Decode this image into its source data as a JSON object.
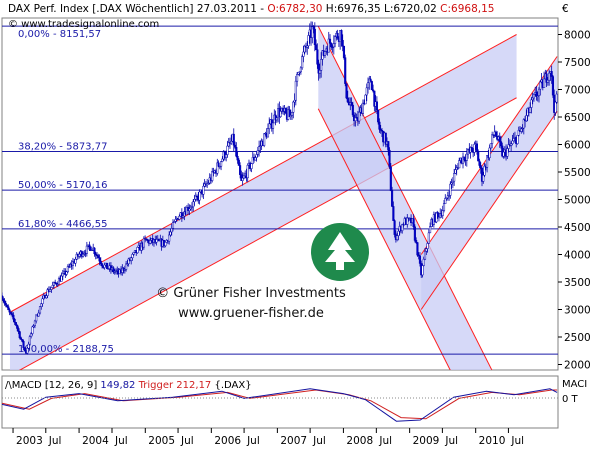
{
  "header": {
    "instrument": "DAX Perf. Index [.DAX Wöchentlich]",
    "date": "27.03.2011",
    "open": "O:6782,30",
    "high": "H:6976,35",
    "low": "L:6720,02",
    "close": "C:6968,15",
    "source": "© www.tradesignalonline.com",
    "currency": "€"
  },
  "watermark": {
    "line1": "© Grüner Fisher Investments",
    "line2": "www.gruener-fisher.de"
  },
  "colors": {
    "channel_fill": "#c8ccf5",
    "channel_line": "#ff2020",
    "fib_line": "#1a1aa8",
    "candle_up": "#ffffff",
    "candle_down": "#0000cc",
    "logo": "#1f8a4c",
    "macd": "#1414a0",
    "trigger": "#d02020"
  },
  "macd_panel": {
    "title": "/\\MACD [12, 26, 9]",
    "macd_value": "149,82",
    "trigger_label": "Trigger",
    "trigger_value": "212,17",
    "symbol": "{.DAX}",
    "right_label": "MACI",
    "zero_label": "0 T"
  },
  "chart_data": {
    "type": "candlestick",
    "y_scale": "linear",
    "ylim": [
      1900,
      8300
    ],
    "yticks": [
      2000,
      2500,
      3000,
      3500,
      4000,
      4500,
      5000,
      5500,
      6000,
      6500,
      7000,
      7500,
      8000
    ],
    "xlim": [
      "2002-11-01",
      "2011-04-01"
    ],
    "x_ticks": [
      {
        "label": "2003",
        "date": "2003-01-01"
      },
      {
        "label": "Jul",
        "date": "2003-07-01"
      },
      {
        "label": "2004",
        "date": "2004-01-01"
      },
      {
        "label": "Jul",
        "date": "2004-07-01"
      },
      {
        "label": "2005",
        "date": "2005-01-01"
      },
      {
        "label": "Jul",
        "date": "2005-07-01"
      },
      {
        "label": "2006",
        "date": "2006-01-01"
      },
      {
        "label": "Jul",
        "date": "2006-07-01"
      },
      {
        "label": "2007",
        "date": "2007-01-01"
      },
      {
        "label": "Jul",
        "date": "2007-07-01"
      },
      {
        "label": "2008",
        "date": "2008-01-01"
      },
      {
        "label": "Jul",
        "date": "2008-07-01"
      },
      {
        "label": "2009",
        "date": "2009-01-01"
      },
      {
        "label": "Jul",
        "date": "2009-07-01"
      },
      {
        "label": "2010",
        "date": "2010-01-01"
      },
      {
        "label": "Jul",
        "date": "2010-07-01"
      }
    ],
    "fib_levels": [
      {
        "label": "0,00% - 8151,57",
        "value": 8151.57
      },
      {
        "label": "38,20% - 5873,77",
        "value": 5873.77
      },
      {
        "label": "50,00% - 5170,16",
        "value": 5170.16
      },
      {
        "label": "61,80% - 4466,55",
        "value": 4466.55
      },
      {
        "label": "100,00% - 2188,75",
        "value": 2188.75
      }
    ],
    "price_path": [
      [
        "2002-11-01",
        3250
      ],
      [
        "2002-12-01",
        3000
      ],
      [
        "2003-01-15",
        2750
      ],
      [
        "2003-03-12",
        2200
      ],
      [
        "2003-05-01",
        2800
      ],
      [
        "2003-07-01",
        3300
      ],
      [
        "2003-10-01",
        3600
      ],
      [
        "2004-01-01",
        4000
      ],
      [
        "2004-03-10",
        4150
      ],
      [
        "2004-05-15",
        3800
      ],
      [
        "2004-08-10",
        3650
      ],
      [
        "2004-11-01",
        4000
      ],
      [
        "2005-01-01",
        4250
      ],
      [
        "2005-04-20",
        4200
      ],
      [
        "2005-07-01",
        4700
      ],
      [
        "2005-10-01",
        4950
      ],
      [
        "2006-01-01",
        5400
      ],
      [
        "2006-05-01",
        6100
      ],
      [
        "2006-06-15",
        5300
      ],
      [
        "2006-09-01",
        5800
      ],
      [
        "2007-01-01",
        6600
      ],
      [
        "2007-03-15",
        6500
      ],
      [
        "2007-05-01",
        7400
      ],
      [
        "2007-07-15",
        8100
      ],
      [
        "2007-08-15",
        7400
      ],
      [
        "2007-10-01",
        7800
      ],
      [
        "2007-12-20",
        8050
      ],
      [
        "2008-01-21",
        6800
      ],
      [
        "2008-03-15",
        6400
      ],
      [
        "2008-06-01",
        7200
      ],
      [
        "2008-07-15",
        6300
      ],
      [
        "2008-09-01",
        6000
      ],
      [
        "2008-10-10",
        4300
      ],
      [
        "2008-12-01",
        4600
      ],
      [
        "2009-01-15",
        4600
      ],
      [
        "2009-03-06",
        3650
      ],
      [
        "2009-05-01",
        4600
      ],
      [
        "2009-07-01",
        4800
      ],
      [
        "2009-10-01",
        5700
      ],
      [
        "2010-01-01",
        5950
      ],
      [
        "2010-02-05",
        5400
      ],
      [
        "2010-04-15",
        6250
      ],
      [
        "2010-06-01",
        5800
      ],
      [
        "2010-09-01",
        6200
      ],
      [
        "2010-11-15",
        6800
      ],
      [
        "2011-01-15",
        7150
      ],
      [
        "2011-02-18",
        7400
      ],
      [
        "2011-03-15",
        6550
      ],
      [
        "2011-03-27",
        6968
      ]
    ],
    "channels": [
      {
        "from": [
          "2002-12-15",
          2950
        ],
        "to": [
          "2010-08-15",
          8000
        ],
        "width": 1150
      },
      {
        "from": [
          "2007-08-15",
          8150
        ],
        "to": [
          "2010-05-01",
          1700
        ],
        "width": 1500
      },
      {
        "from": [
          "2009-03-06",
          4000
        ],
        "to": [
          "2011-03-27",
          7600
        ],
        "width": 1000
      }
    ],
    "macd": {
      "ylim": [
        -1,
        1
      ],
      "macd_points": [
        [
          "2002-11-01",
          -0.1
        ],
        [
          "2003-03-01",
          -0.3
        ],
        [
          "2003-07-01",
          0.2
        ],
        [
          "2004-01-01",
          0.35
        ],
        [
          "2004-08-01",
          0.05
        ],
        [
          "2005-06-01",
          0.2
        ],
        [
          "2006-03-01",
          0.45
        ],
        [
          "2006-07-01",
          0.15
        ],
        [
          "2007-07-01",
          0.55
        ],
        [
          "2008-01-01",
          0.35
        ],
        [
          "2008-05-01",
          0.1
        ],
        [
          "2008-10-20",
          -0.8
        ],
        [
          "2009-03-01",
          -0.75
        ],
        [
          "2009-09-01",
          0.2
        ],
        [
          "2010-03-01",
          0.45
        ],
        [
          "2010-08-01",
          0.3
        ],
        [
          "2011-02-15",
          0.55
        ],
        [
          "2011-03-27",
          0.4
        ]
      ],
      "trigger_points": [
        [
          "2002-11-01",
          -0.05
        ],
        [
          "2003-04-01",
          -0.3
        ],
        [
          "2003-08-01",
          0.15
        ],
        [
          "2004-02-01",
          0.35
        ],
        [
          "2004-09-01",
          0.05
        ],
        [
          "2005-07-01",
          0.2
        ],
        [
          "2006-04-01",
          0.4
        ],
        [
          "2006-08-01",
          0.15
        ],
        [
          "2007-08-01",
          0.5
        ],
        [
          "2008-02-01",
          0.3
        ],
        [
          "2008-06-01",
          0.05
        ],
        [
          "2008-11-15",
          -0.65
        ],
        [
          "2009-04-01",
          -0.7
        ],
        [
          "2009-10-01",
          0.15
        ],
        [
          "2010-04-01",
          0.4
        ],
        [
          "2010-09-01",
          0.3
        ],
        [
          "2011-02-25",
          0.5
        ],
        [
          "2011-03-27",
          0.5
        ]
      ]
    }
  }
}
